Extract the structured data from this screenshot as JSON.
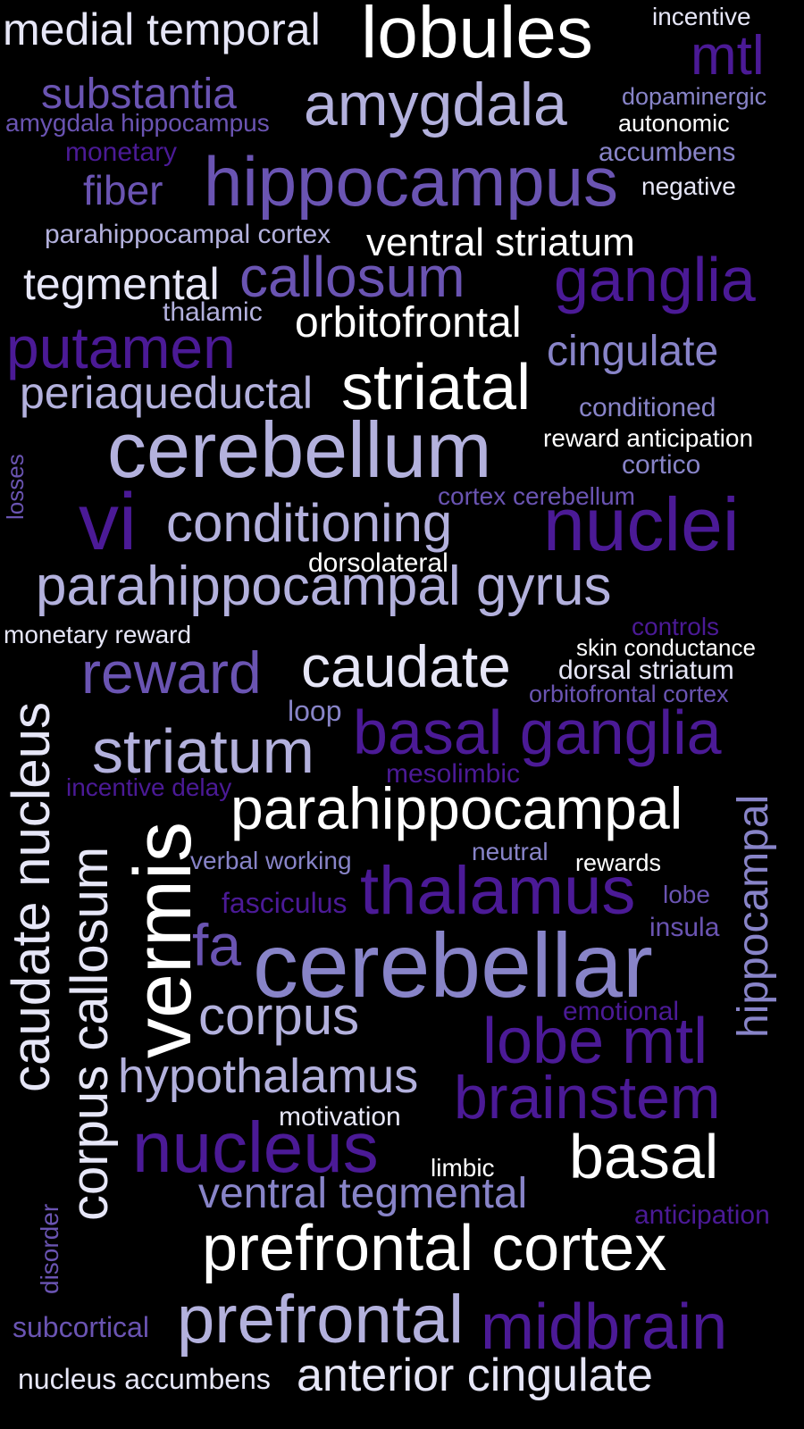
{
  "background": "#000000",
  "palette": {
    "white": "#ffffff",
    "pale": "#e6e6f7",
    "light": "#b3b1dd",
    "mid": "#8884c8",
    "purple": "#6a54b2",
    "deep": "#4b1a96"
  },
  "words": [
    {
      "text": "medial temporal",
      "color": "pale"
    },
    {
      "text": "lobules",
      "color": "white"
    },
    {
      "text": "incentive",
      "color": "pale"
    },
    {
      "text": "mtl",
      "color": "deep"
    },
    {
      "text": "substantia",
      "color": "purple"
    },
    {
      "text": "amygdala",
      "color": "light"
    },
    {
      "text": "dopaminergic",
      "color": "mid"
    },
    {
      "text": "amygdala hippocampus",
      "color": "purple"
    },
    {
      "text": "autonomic",
      "color": "white"
    },
    {
      "text": "monetary",
      "color": "deep"
    },
    {
      "text": "accumbens",
      "color": "mid"
    },
    {
      "text": "fiber",
      "color": "purple"
    },
    {
      "text": "hippocampus",
      "color": "purple"
    },
    {
      "text": "negative",
      "color": "pale"
    },
    {
      "text": "parahippocampal cortex",
      "color": "light"
    },
    {
      "text": "ventral striatum",
      "color": "white"
    },
    {
      "text": "tegmental",
      "color": "pale"
    },
    {
      "text": "callosum",
      "color": "purple"
    },
    {
      "text": "ganglia",
      "color": "deep"
    },
    {
      "text": "thalamic",
      "color": "light"
    },
    {
      "text": "orbitofrontal",
      "color": "white"
    },
    {
      "text": "putamen",
      "color": "deep"
    },
    {
      "text": "cingulate",
      "color": "mid"
    },
    {
      "text": "periaqueductal",
      "color": "light"
    },
    {
      "text": "striatal",
      "color": "white"
    },
    {
      "text": "conditioned",
      "color": "mid"
    },
    {
      "text": "cerebellum",
      "color": "light"
    },
    {
      "text": "reward anticipation",
      "color": "white"
    },
    {
      "text": "cortico",
      "color": "mid"
    },
    {
      "text": "losses",
      "color": "purple"
    },
    {
      "text": "cortex cerebellum",
      "color": "purple"
    },
    {
      "text": "vi",
      "color": "deep"
    },
    {
      "text": "conditioning",
      "color": "light"
    },
    {
      "text": "nuclei",
      "color": "deep"
    },
    {
      "text": "dorsolateral",
      "color": "white"
    },
    {
      "text": "parahippocampal gyrus",
      "color": "light"
    },
    {
      "text": "controls",
      "color": "deep"
    },
    {
      "text": "monetary reward",
      "color": "pale"
    },
    {
      "text": "skin conductance",
      "color": "white"
    },
    {
      "text": "reward",
      "color": "purple"
    },
    {
      "text": "caudate",
      "color": "pale"
    },
    {
      "text": "dorsal striatum",
      "color": "pale"
    },
    {
      "text": "orbitofrontal cortex",
      "color": "purple"
    },
    {
      "text": "caudate nucleus",
      "color": "pale"
    },
    {
      "text": "loop",
      "color": "mid"
    },
    {
      "text": "basal ganglia",
      "color": "deep"
    },
    {
      "text": "striatum",
      "color": "light"
    },
    {
      "text": "mesolimbic",
      "color": "deep"
    },
    {
      "text": "incentive delay",
      "color": "deep"
    },
    {
      "text": "parahippocampal",
      "color": "white"
    },
    {
      "text": "hippocampal",
      "color": "mid"
    },
    {
      "text": "corpus callosum",
      "color": "pale"
    },
    {
      "text": "vermis",
      "color": "white"
    },
    {
      "text": "verbal working",
      "color": "mid"
    },
    {
      "text": "neutral",
      "color": "mid"
    },
    {
      "text": "rewards",
      "color": "white"
    },
    {
      "text": "thalamus",
      "color": "deep"
    },
    {
      "text": "fasciculus",
      "color": "deep"
    },
    {
      "text": "lobe",
      "color": "purple"
    },
    {
      "text": "insula",
      "color": "purple"
    },
    {
      "text": "fa",
      "color": "purple"
    },
    {
      "text": "cerebellar",
      "color": "mid"
    },
    {
      "text": "corpus",
      "color": "light"
    },
    {
      "text": "emotional",
      "color": "deep"
    },
    {
      "text": "lobe mtl",
      "color": "deep"
    },
    {
      "text": "hypothalamus",
      "color": "light"
    },
    {
      "text": "brainstem",
      "color": "deep"
    },
    {
      "text": "motivation",
      "color": "pale"
    },
    {
      "text": "nucleus",
      "color": "deep"
    },
    {
      "text": "limbic",
      "color": "white"
    },
    {
      "text": "basal",
      "color": "white"
    },
    {
      "text": "ventral tegmental",
      "color": "mid"
    },
    {
      "text": "anticipation",
      "color": "deep"
    },
    {
      "text": "disorder",
      "color": "purple"
    },
    {
      "text": "prefrontal cortex",
      "color": "white"
    },
    {
      "text": "subcortical",
      "color": "purple"
    },
    {
      "text": "prefrontal",
      "color": "light"
    },
    {
      "text": "midbrain",
      "color": "deep"
    },
    {
      "text": "nucleus accumbens",
      "color": "pale"
    },
    {
      "text": "anterior cingulate",
      "color": "pale"
    }
  ]
}
